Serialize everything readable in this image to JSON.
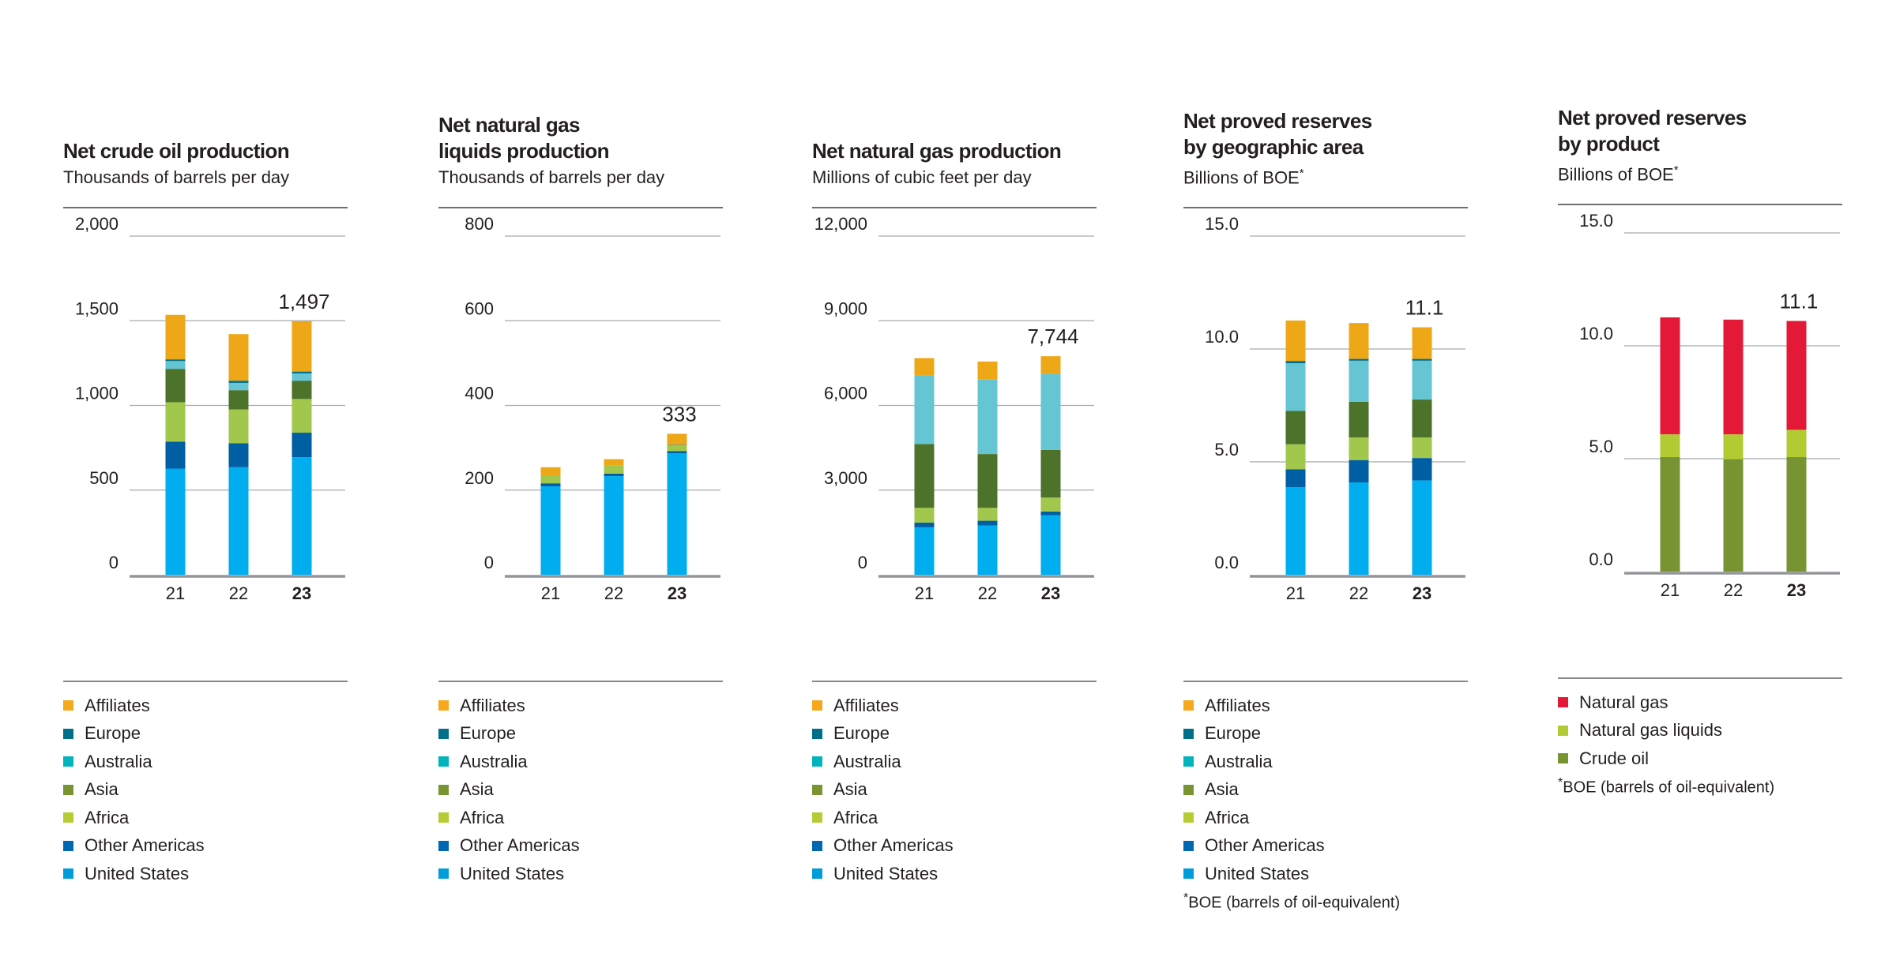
{
  "legend_colors": {
    "Affiliates": "#f5a81c",
    "Europe": "#00708a",
    "Australia": "#00b3bd",
    "Asia": "#799431",
    "Africa": "#b5cc35",
    "Other Americas": "#0067b1",
    "United States": "#009ddc",
    "Natural gas": "#e31937",
    "Natural gas liquids": "#b2cb33",
    "Crude oil": "#789331"
  },
  "bar_colors": {
    "Affiliates": "#eea717",
    "Europe": "#007090",
    "Australia": "#66c5d3",
    "Asia": "#4d722a",
    "Africa": "#a1c74c",
    "Other Americas": "#005ea2",
    "United States": "#00aeef",
    "Natural gas": "#e31937",
    "Natural gas liquids": "#b2cb33",
    "Crude oil": "#789331"
  },
  "chart_data": [
    {
      "type": "bar",
      "stacked": true,
      "title_lines": [
        "Net crude oil production"
      ],
      "subtitle": "Thousands of barrels per day",
      "subtitle_mark": "",
      "categories": [
        "21",
        "22",
        "23"
      ],
      "highlight_category": "23",
      "ylim": [
        0,
        2000
      ],
      "yticks": [
        0,
        500,
        1000,
        1500,
        2000
      ],
      "ytick_labels": [
        "0",
        "500",
        "1,000",
        "1,500",
        "2,000"
      ],
      "total_label": "1,497",
      "grid": true,
      "series": [
        {
          "name": "United States",
          "values": [
            627,
            635,
            694
          ]
        },
        {
          "name": "Other Americas",
          "values": [
            159,
            142,
            145
          ]
        },
        {
          "name": "Africa",
          "values": [
            233,
            199,
            199
          ]
        },
        {
          "name": "Asia",
          "values": [
            197,
            114,
            108
          ]
        },
        {
          "name": "Australia",
          "values": [
            46,
            43,
            43
          ]
        },
        {
          "name": "Europe",
          "values": [
            10,
            13,
            11
          ]
        },
        {
          "name": "Affiliates",
          "values": [
            263,
            275,
            297
          ]
        }
      ],
      "footnote_mark": "",
      "footnote": ""
    },
    {
      "type": "bar",
      "stacked": true,
      "title_lines": [
        "Net natural gas",
        "liquids production"
      ],
      "subtitle": "Thousands of barrels per day",
      "subtitle_mark": "",
      "categories": [
        "21",
        "22",
        "23"
      ],
      "highlight_category": "23",
      "ylim": [
        0,
        800
      ],
      "yticks": [
        0,
        200,
        400,
        600,
        800
      ],
      "ytick_labels": [
        "0",
        "200",
        "400",
        "600",
        "800"
      ],
      "total_label": "333",
      "grid": true,
      "series": [
        {
          "name": "United States",
          "values": [
            209,
            233,
            287
          ]
        },
        {
          "name": "Other Americas",
          "values": [
            7,
            6,
            5
          ]
        },
        {
          "name": "Africa",
          "values": [
            18,
            19,
            14
          ]
        },
        {
          "name": "Asia",
          "values": [
            0,
            0,
            0
          ]
        },
        {
          "name": "Australia",
          "values": [
            0,
            0,
            0
          ]
        },
        {
          "name": "Europe",
          "values": [
            0,
            0,
            1
          ]
        },
        {
          "name": "Affiliates",
          "values": [
            20,
            15,
            26
          ]
        }
      ],
      "footnote_mark": "",
      "footnote": ""
    },
    {
      "type": "bar",
      "stacked": true,
      "title_lines": [
        "Net natural gas production"
      ],
      "subtitle": "Millions of cubic feet per day",
      "subtitle_mark": "",
      "categories": [
        "21",
        "22",
        "23"
      ],
      "highlight_category": "23",
      "ylim": [
        0,
        12000
      ],
      "yticks": [
        0,
        3000,
        6000,
        9000,
        12000
      ],
      "ytick_labels": [
        "0",
        "3,000",
        "6,000",
        "9,000",
        "12,000"
      ],
      "total_label": "7,744",
      "grid": true,
      "series": [
        {
          "name": "United States",
          "values": [
            1681,
            1746,
            2110
          ]
        },
        {
          "name": "Other Americas",
          "values": [
            168,
            168,
            131
          ]
        },
        {
          "name": "Africa",
          "values": [
            523,
            458,
            495
          ]
        },
        {
          "name": "Asia",
          "values": [
            2260,
            1905,
            1690
          ]
        },
        {
          "name": "Australia",
          "values": [
            2428,
            2652,
            2690
          ]
        },
        {
          "name": "Europe",
          "values": [
            0,
            0,
            0
          ]
        },
        {
          "name": "Affiliates",
          "values": [
            616,
            626,
            628
          ]
        }
      ],
      "footnote_mark": "",
      "footnote": ""
    },
    {
      "type": "bar",
      "stacked": true,
      "title_lines": [
        "Net proved reserves",
        "by geographic area"
      ],
      "subtitle": "Billions of BOE",
      "subtitle_mark": "*",
      "categories": [
        "21",
        "22",
        "23"
      ],
      "highlight_category": "23",
      "ylim": [
        0,
        15
      ],
      "yticks": [
        0,
        5,
        10,
        15
      ],
      "ytick_labels": [
        "0.0",
        "5.0",
        "10.0",
        "15.0"
      ],
      "total_label": "11.1",
      "grid": true,
      "series": [
        {
          "name": "United States",
          "values": [
            3.88,
            4.09,
            4.18
          ]
        },
        {
          "name": "Other Americas",
          "values": [
            0.79,
            0.99,
            0.99
          ]
        },
        {
          "name": "Africa",
          "values": [
            1.11,
            1.0,
            0.91
          ]
        },
        {
          "name": "Asia",
          "values": [
            1.48,
            1.58,
            1.68
          ]
        },
        {
          "name": "Australia",
          "values": [
            2.11,
            1.82,
            1.72
          ]
        },
        {
          "name": "Europe",
          "values": [
            0.1,
            0.08,
            0.08
          ]
        },
        {
          "name": "Affiliates",
          "values": [
            1.79,
            1.59,
            1.4
          ]
        }
      ],
      "footnote_mark": "*",
      "footnote": "BOE (barrels of oil-equivalent)"
    },
    {
      "type": "bar",
      "stacked": true,
      "title_lines": [
        "Net proved reserves",
        "by product"
      ],
      "subtitle": "Billions of BOE",
      "subtitle_mark": "*",
      "categories": [
        "21",
        "22",
        "23"
      ],
      "highlight_category": "23",
      "ylim": [
        0,
        15
      ],
      "yticks": [
        0,
        5,
        10,
        15
      ],
      "ytick_labels": [
        "0.0",
        "5.0",
        "10.0",
        "15.0"
      ],
      "total_label": "11.1",
      "grid": true,
      "series": [
        {
          "name": "Crude oil",
          "values": [
            5.07,
            4.98,
            5.07
          ]
        },
        {
          "name": "Natural gas liquids",
          "values": [
            1.01,
            1.1,
            1.21
          ]
        },
        {
          "name": "Natural gas",
          "values": [
            5.18,
            5.08,
            4.82
          ]
        }
      ],
      "footnote_mark": "*",
      "footnote": "BOE (barrels of oil-equivalent)"
    }
  ]
}
